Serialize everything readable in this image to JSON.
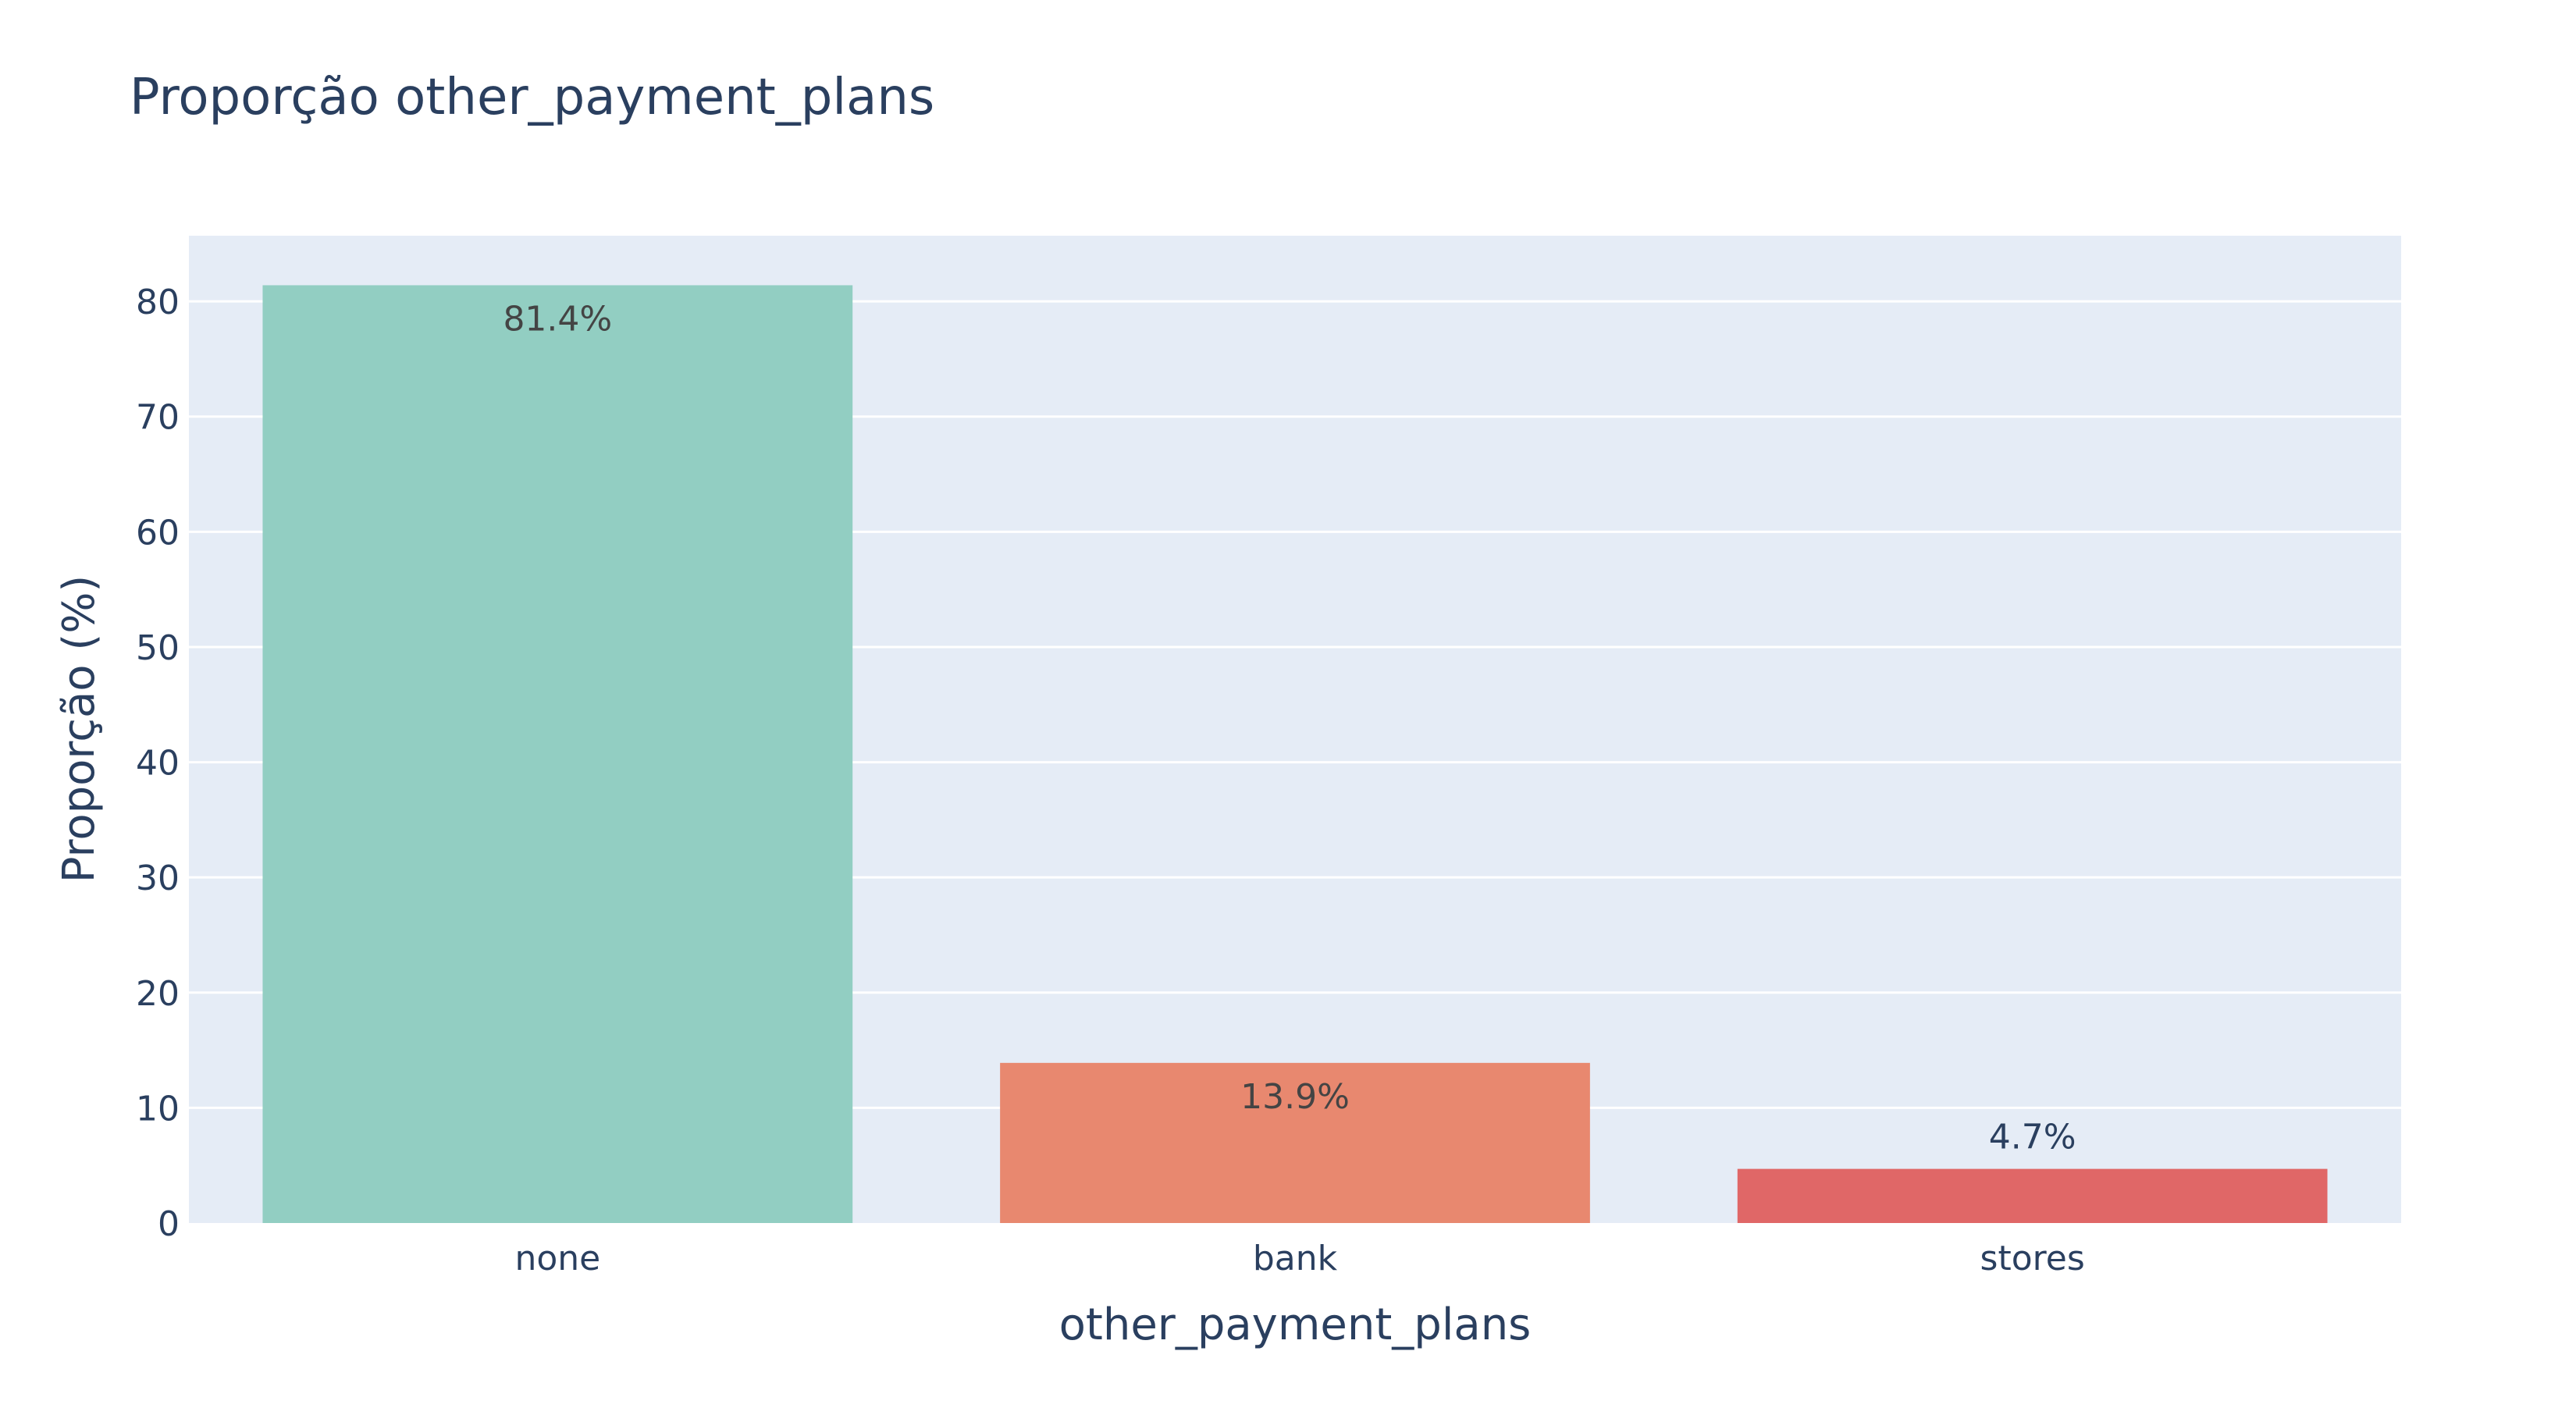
{
  "chart_data": {
    "type": "bar",
    "title": "Proporção other_payment_plans",
    "xlabel": "other_payment_plans",
    "ylabel": "Proporção (%)",
    "categories": [
      "none",
      "bank",
      "stores"
    ],
    "values": [
      81.4,
      13.9,
      4.7
    ],
    "data_labels": [
      "81.4%",
      "13.9%",
      "4.7%"
    ],
    "bar_colors": [
      "#92cec2",
      "#e8886f",
      "#e06767"
    ],
    "ylim": [
      0,
      85.7
    ],
    "yticks": [
      0,
      10,
      20,
      30,
      40,
      50,
      60,
      70,
      80
    ],
    "grid": true,
    "legend": "none"
  },
  "colors": {
    "plot_background": "#e5ecf6",
    "gridline": "#ffffff",
    "text": "#2a3f5f",
    "label_inside": "#444444"
  }
}
